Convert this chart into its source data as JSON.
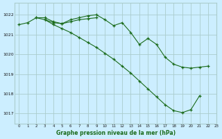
{
  "title": "Graphe pression niveau de la mer (hPa)",
  "bg_color": "#cceeff",
  "grid_color": "#aacccc",
  "line_color": "#1a6b1a",
  "xlim": [
    -0.5,
    23
  ],
  "ylim": [
    1016.5,
    1022.6
  ],
  "yticks": [
    1017,
    1018,
    1019,
    1020,
    1021,
    1022
  ],
  "xticks": [
    0,
    1,
    2,
    3,
    4,
    5,
    6,
    7,
    8,
    9,
    10,
    11,
    12,
    13,
    14,
    15,
    16,
    17,
    18,
    19,
    20,
    21,
    22,
    23
  ],
  "series": [
    {
      "x": [
        0,
        1,
        2,
        3,
        4,
        5,
        6,
        7,
        8,
        9,
        10,
        11,
        12,
        13,
        14,
        15,
        16,
        17,
        18,
        19,
        20,
        21,
        22
      ],
      "y": [
        1021.5,
        1021.6,
        1021.85,
        1021.85,
        1021.65,
        1021.55,
        1021.75,
        1021.85,
        1021.95,
        1022.0,
        1021.75,
        1021.45,
        1021.6,
        1021.1,
        1020.5,
        1020.8,
        1020.5,
        1019.85,
        1019.5,
        1019.35,
        1019.3,
        1019.35,
        1019.4
      ]
    },
    {
      "x": [
        2,
        3,
        4,
        5,
        6,
        7,
        8,
        9
      ],
      "y": [
        1021.85,
        1021.75,
        1021.6,
        1021.55,
        1021.65,
        1021.75,
        1021.8,
        1021.85
      ]
    },
    {
      "x": [
        3,
        4,
        5,
        6,
        7,
        8,
        9,
        10,
        11,
        12,
        13,
        14,
        15,
        16,
        17,
        18,
        19,
        20,
        21
      ],
      "y": [
        1021.75,
        1021.5,
        1021.3,
        1021.1,
        1020.85,
        1020.6,
        1020.35,
        1020.05,
        1019.75,
        1019.4,
        1019.05,
        1018.65,
        1018.25,
        1017.85,
        1017.45,
        1017.15,
        1017.05,
        1017.2,
        1017.9
      ]
    }
  ]
}
